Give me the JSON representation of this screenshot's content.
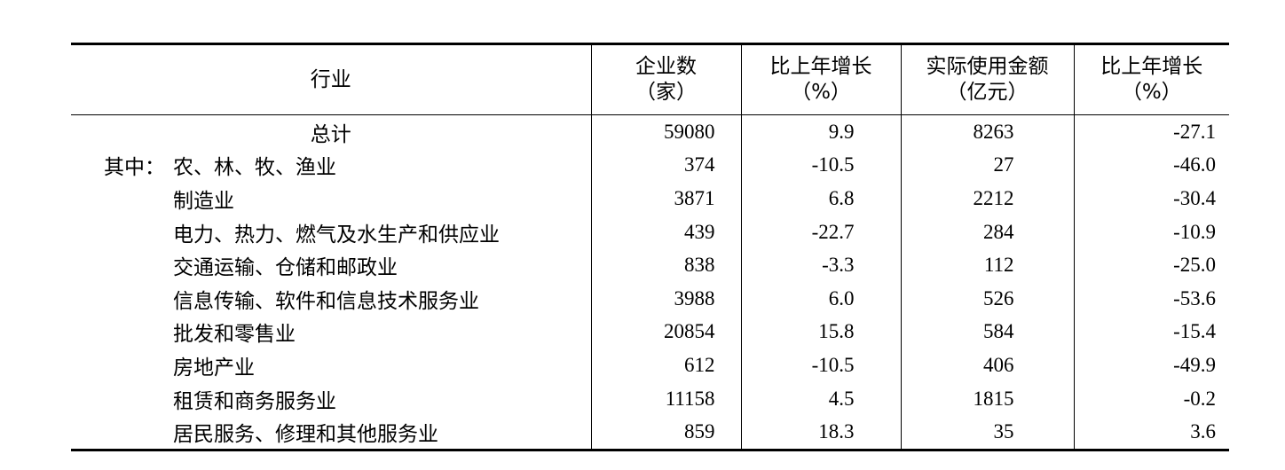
{
  "table": {
    "header": [
      [
        "行业"
      ],
      [
        "企业数",
        "（家）"
      ],
      [
        "比上年增长",
        "（%）"
      ],
      [
        "实际使用金额",
        "（亿元）"
      ],
      [
        "比上年增长",
        "（%）"
      ]
    ],
    "rows": [
      {
        "label": "总计",
        "values": [
          "59080",
          "9.9",
          "8263",
          "-27.1"
        ]
      },
      {
        "prefix": "其中：",
        "label": "农、林、牧、渔业",
        "values": [
          "374",
          "-10.5",
          "27",
          "-46.0"
        ]
      },
      {
        "label": "制造业",
        "values": [
          "3871",
          "6.8",
          "2212",
          "-30.4"
        ]
      },
      {
        "label": "电力、热力、燃气及水生产和供应业",
        "values": [
          "439",
          "-22.7",
          "284",
          "-10.9"
        ]
      },
      {
        "label": "交通运输、仓储和邮政业",
        "values": [
          "838",
          "-3.3",
          "112",
          "-25.0"
        ]
      },
      {
        "label": "信息传输、软件和信息技术服务业",
        "values": [
          "3988",
          "6.0",
          "526",
          "-53.6"
        ]
      },
      {
        "label": "批发和零售业",
        "values": [
          "20854",
          "15.8",
          "584",
          "-15.4"
        ]
      },
      {
        "label": "房地产业",
        "values": [
          "612",
          "-10.5",
          "406",
          "-49.9"
        ]
      },
      {
        "label": "租赁和商务服务业",
        "values": [
          "11158",
          "4.5",
          "1815",
          "-0.2"
        ]
      },
      {
        "label": "居民服务、修理和其他服务业",
        "values": [
          "859",
          "18.3",
          "35",
          "3.6"
        ]
      }
    ]
  }
}
